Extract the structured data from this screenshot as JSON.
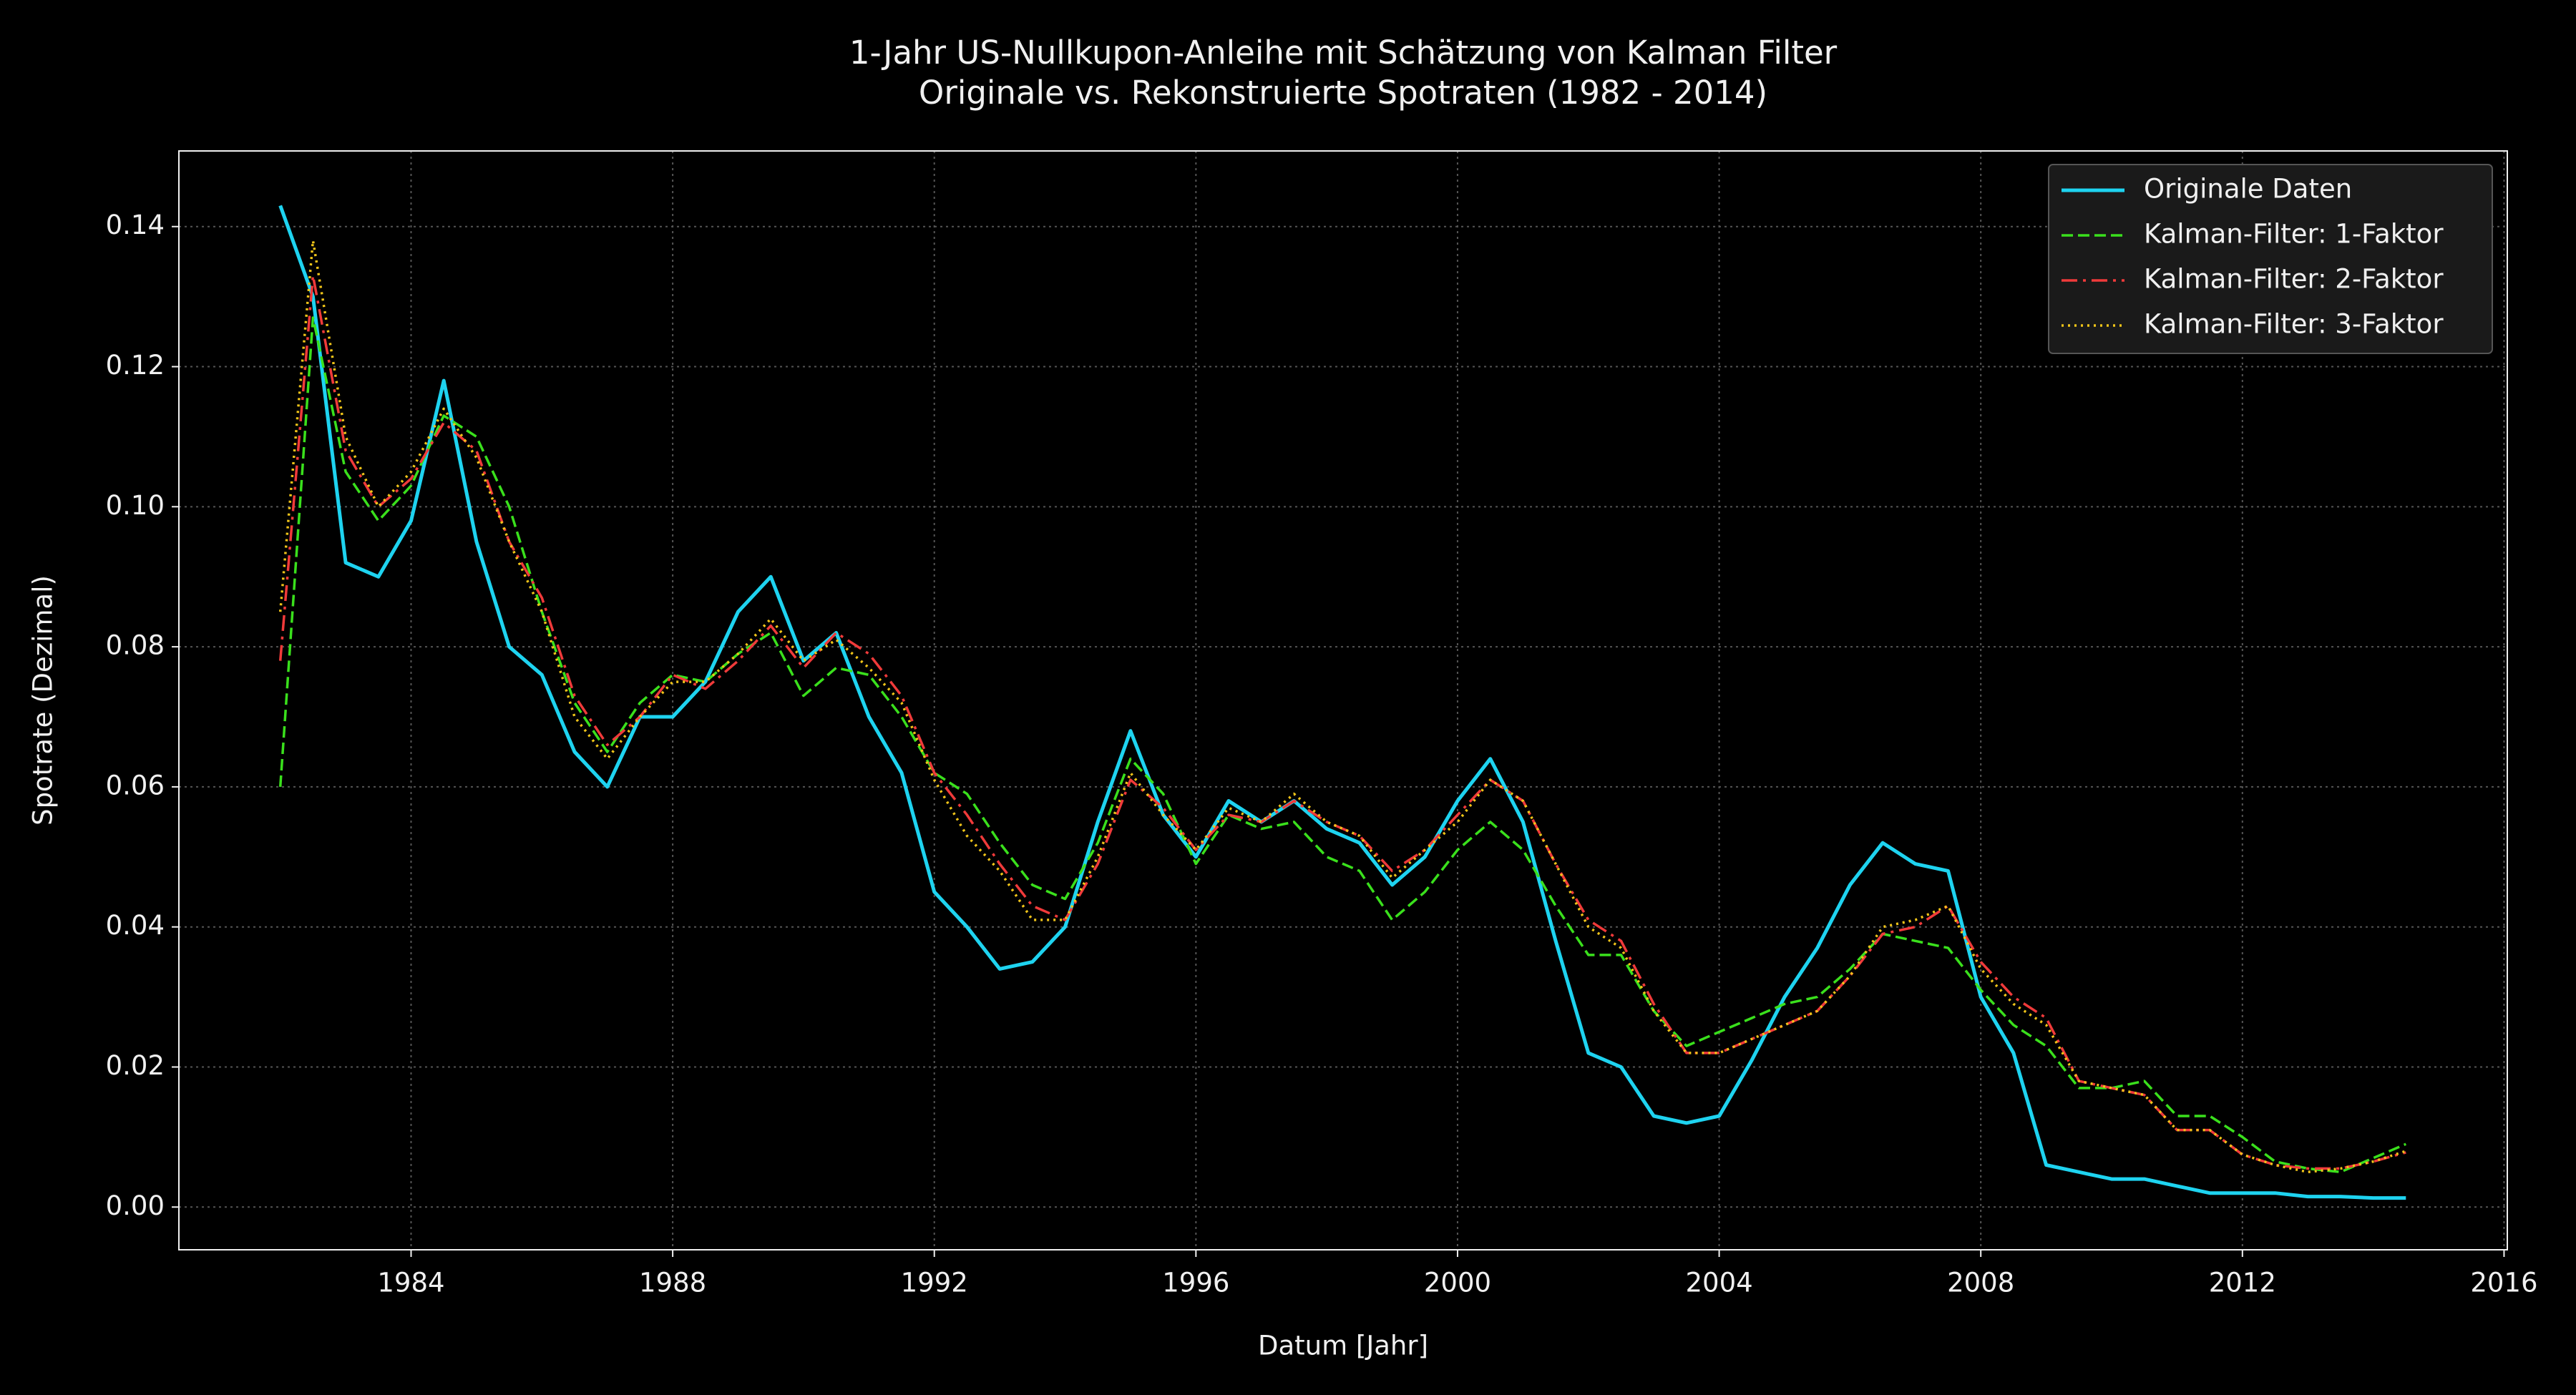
{
  "chart_data": {
    "type": "line",
    "title": "1-Jahr US-Nullkupon-Anleihe mit Schätzung von Kalman Filter",
    "subtitle": "Originale vs. Rekonstruierte Spotraten (1982 - 2014)",
    "x_label": "Datum [Jahr]",
    "y_label": "Spotrate (Dezimal)",
    "x": [
      1982.0,
      1982.5,
      1983.0,
      1983.5,
      1984.0,
      1984.5,
      1985.0,
      1985.5,
      1986.0,
      1986.5,
      1987.0,
      1987.5,
      1988.0,
      1988.5,
      1989.0,
      1989.5,
      1990.0,
      1990.5,
      1991.0,
      1991.5,
      1992.0,
      1992.5,
      1993.0,
      1993.5,
      1994.0,
      1994.5,
      1995.0,
      1995.5,
      1996.0,
      1996.5,
      1997.0,
      1997.5,
      1998.0,
      1998.5,
      1999.0,
      1999.5,
      2000.0,
      2000.5,
      2001.0,
      2001.5,
      2002.0,
      2002.5,
      2003.0,
      2003.5,
      2004.0,
      2004.5,
      2005.0,
      2005.5,
      2006.0,
      2006.5,
      2007.0,
      2007.5,
      2008.0,
      2008.5,
      2009.0,
      2009.5,
      2010.0,
      2010.5,
      2011.0,
      2011.5,
      2012.0,
      2012.5,
      2013.0,
      2013.5,
      2014.0,
      2014.5
    ],
    "series": [
      {
        "name": "Originale Daten",
        "color": "#1ed3f0",
        "linestyle": "solid",
        "values": [
          0.143,
          0.13,
          0.092,
          0.09,
          0.098,
          0.118,
          0.095,
          0.08,
          0.076,
          0.065,
          0.06,
          0.07,
          0.07,
          0.075,
          0.085,
          0.09,
          0.078,
          0.082,
          0.07,
          0.062,
          0.045,
          0.04,
          0.034,
          0.035,
          0.04,
          0.055,
          0.068,
          0.056,
          0.05,
          0.058,
          0.055,
          0.058,
          0.054,
          0.052,
          0.046,
          0.05,
          0.058,
          0.064,
          0.055,
          0.038,
          0.022,
          0.02,
          0.013,
          0.012,
          0.013,
          0.021,
          0.03,
          0.037,
          0.046,
          0.052,
          0.049,
          0.048,
          0.03,
          0.022,
          0.006,
          0.005,
          0.004,
          0.004,
          0.003,
          0.002,
          0.002,
          0.002,
          0.0015,
          0.0015,
          0.0013,
          0.0013
        ]
      },
      {
        "name": "Kalman-Filter: 1-Faktor",
        "color": "#3ae01c",
        "linestyle": "dashed",
        "values": [
          0.06,
          0.127,
          0.105,
          0.098,
          0.103,
          0.113,
          0.11,
          0.1,
          0.085,
          0.072,
          0.065,
          0.072,
          0.076,
          0.075,
          0.079,
          0.082,
          0.073,
          0.077,
          0.076,
          0.07,
          0.062,
          0.059,
          0.052,
          0.046,
          0.044,
          0.052,
          0.064,
          0.059,
          0.049,
          0.056,
          0.054,
          0.055,
          0.05,
          0.048,
          0.041,
          0.045,
          0.051,
          0.055,
          0.051,
          0.043,
          0.036,
          0.036,
          0.028,
          0.023,
          0.025,
          0.027,
          0.029,
          0.03,
          0.034,
          0.039,
          0.038,
          0.037,
          0.031,
          0.026,
          0.023,
          0.017,
          0.017,
          0.018,
          0.013,
          0.013,
          0.01,
          0.0065,
          0.0055,
          0.005,
          0.007,
          0.009
        ]
      },
      {
        "name": "Kalman-Filter: 2-Faktor",
        "color": "#f03a3a",
        "linestyle": "dashdot",
        "values": [
          0.078,
          0.133,
          0.108,
          0.1,
          0.104,
          0.112,
          0.108,
          0.095,
          0.087,
          0.073,
          0.066,
          0.07,
          0.076,
          0.074,
          0.078,
          0.083,
          0.077,
          0.082,
          0.079,
          0.073,
          0.062,
          0.056,
          0.049,
          0.043,
          0.041,
          0.049,
          0.061,
          0.057,
          0.051,
          0.056,
          0.055,
          0.058,
          0.055,
          0.053,
          0.048,
          0.051,
          0.056,
          0.061,
          0.058,
          0.049,
          0.041,
          0.038,
          0.029,
          0.022,
          0.022,
          0.024,
          0.026,
          0.028,
          0.033,
          0.039,
          0.04,
          0.043,
          0.035,
          0.03,
          0.027,
          0.018,
          0.017,
          0.016,
          0.011,
          0.011,
          0.0075,
          0.006,
          0.0055,
          0.0055,
          0.0065,
          0.0078
        ]
      },
      {
        "name": "Kalman-Filter: 3-Faktor",
        "color": "#f0c419",
        "linestyle": "dotted",
        "values": [
          0.085,
          0.138,
          0.11,
          0.1,
          0.105,
          0.114,
          0.107,
          0.095,
          0.085,
          0.07,
          0.064,
          0.07,
          0.075,
          0.075,
          0.079,
          0.084,
          0.078,
          0.081,
          0.077,
          0.072,
          0.061,
          0.053,
          0.048,
          0.041,
          0.041,
          0.05,
          0.062,
          0.056,
          0.051,
          0.057,
          0.055,
          0.059,
          0.055,
          0.053,
          0.047,
          0.051,
          0.055,
          0.061,
          0.058,
          0.049,
          0.04,
          0.037,
          0.028,
          0.022,
          0.022,
          0.024,
          0.026,
          0.028,
          0.033,
          0.04,
          0.041,
          0.043,
          0.034,
          0.029,
          0.026,
          0.018,
          0.017,
          0.016,
          0.011,
          0.011,
          0.0075,
          0.006,
          0.005,
          0.0055,
          0.0065,
          0.008
        ]
      }
    ],
    "xlim": [
      1980.45,
      2016.05
    ],
    "ylim": [
      -0.0061,
      0.1508
    ],
    "xticks": [
      1984,
      1988,
      1992,
      1996,
      2000,
      2004,
      2008,
      2012,
      2016
    ],
    "yticks": [
      {
        "value": 0,
        "label": "0.00"
      },
      0.02,
      0.04,
      0.06,
      0.08,
      {
        "value": 0.1,
        "label": "0.10"
      },
      0.12,
      0.14
    ],
    "grid": true,
    "legend": "upper right"
  }
}
